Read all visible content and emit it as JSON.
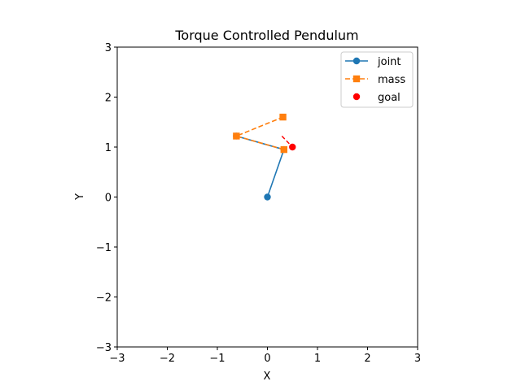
{
  "chart_data": {
    "type": "line",
    "title": "Torque Controlled Pendulum",
    "xlabel": "X",
    "ylabel": "Y",
    "xlim": [
      -3,
      3
    ],
    "ylim": [
      -3,
      3
    ],
    "xticks": [
      -3,
      -2,
      -1,
      0,
      1,
      2,
      3
    ],
    "yticks": [
      -3,
      -2,
      -1,
      0,
      1,
      2,
      3
    ],
    "xtick_labels": [
      "−3",
      "−2",
      "−1",
      "0",
      "1",
      "2",
      "3"
    ],
    "ytick_labels": [
      "−3",
      "−2",
      "−1",
      "0",
      "1",
      "2",
      "3"
    ],
    "grid": false,
    "legend_position": "top-right",
    "series": [
      {
        "name": "joint",
        "style": "solid",
        "marker": "circle",
        "color": "#1f77b4",
        "points": [
          [
            0,
            0
          ],
          [
            0.33,
            0.95
          ],
          [
            -0.62,
            1.22
          ]
        ]
      },
      {
        "name": "mass",
        "style": "dashed",
        "marker": "square",
        "color": "#ff7f0e",
        "points": [
          [
            0.33,
            0.95
          ],
          [
            -0.62,
            1.22
          ],
          [
            0.31,
            1.6
          ]
        ]
      },
      {
        "name": "goal",
        "style": "none",
        "marker": "circle",
        "color": "#ff0000",
        "points": [
          [
            0.5,
            1.0
          ]
        ]
      }
    ],
    "annotations": [
      {
        "type": "dashed-segment",
        "color": "#ff0000",
        "points": [
          [
            0.29,
            1.22
          ],
          [
            0.5,
            1.0
          ]
        ]
      }
    ]
  }
}
